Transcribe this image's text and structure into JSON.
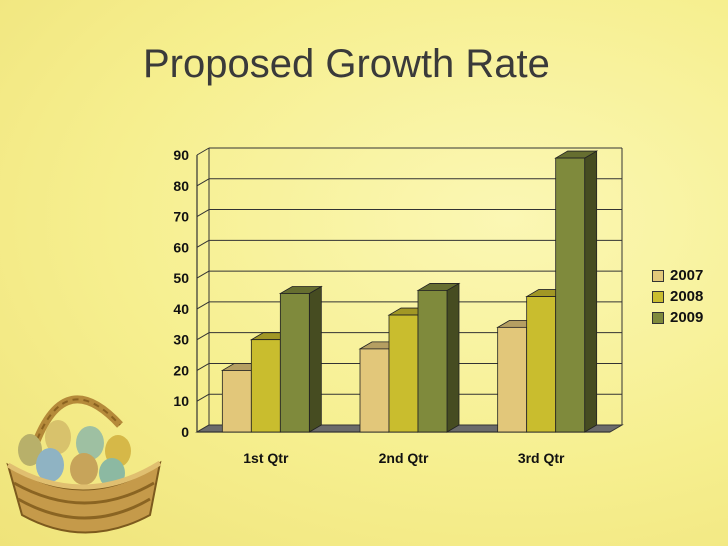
{
  "slide": {
    "title": "Proposed Growth Rate"
  },
  "chart_data": {
    "type": "bar",
    "categories": [
      "1st Qtr",
      "2nd Qtr",
      "3rd Qtr"
    ],
    "series": [
      {
        "name": "2007",
        "values": [
          20,
          27,
          34
        ],
        "color": "#e2c77a"
      },
      {
        "name": "2008",
        "values": [
          30,
          38,
          44
        ],
        "color": "#c9bd2e"
      },
      {
        "name": "2009",
        "values": [
          45,
          46,
          89
        ],
        "color": "#7f8a3c"
      }
    ],
    "yticks": [
      "0",
      "10",
      "20",
      "30",
      "40",
      "50",
      "60",
      "70",
      "80",
      "90"
    ],
    "ylim": [
      0,
      90
    ],
    "grid": true,
    "legend_position": "right",
    "style": "3d-clustered-column"
  },
  "decor": {
    "basket_icon": "easter-egg-basket-icon"
  }
}
